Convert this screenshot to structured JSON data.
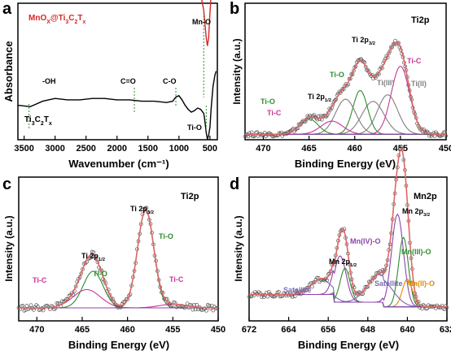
{
  "colors": {
    "mn_curve": "#d62728",
    "ti_curve": "#000000",
    "envelope": "#e06666",
    "green": "#2e8b2e",
    "gray": "#808080",
    "magenta": "#cc3399",
    "purple": "#8e44ad",
    "orange": "#e08a00",
    "lavender": "#7b68b5",
    "marker_red": "#b22222"
  },
  "chart_data": [
    {
      "type": "line",
      "panel_label": "a",
      "xlabel": "Wavenumber (cm⁻¹)",
      "ylabel": "Absorbance",
      "xlim": [
        3600,
        380
      ],
      "ylim": [
        0,
        1
      ],
      "xticks": [
        "3500",
        "3000",
        "2500",
        "2000",
        "1500",
        "1000",
        "500"
      ],
      "series": [
        {
          "name": "MnOX@Ti3C2Tx",
          "label_main": "MnO",
          "label_sub1": "X",
          "label_mid": "@Ti",
          "label_sub2": "3",
          "label_mid2": "C",
          "label_sub3": "2",
          "label_mid3": "T",
          "label_sub4": "x",
          "x": [
            3600,
            3400,
            3200,
            3000,
            2800,
            2600,
            2400,
            2200,
            2000,
            1800,
            1600,
            1400,
            1200,
            1100,
            1000,
            900,
            800,
            700,
            650,
            600,
            560,
            540,
            520,
            500,
            480,
            450,
            420,
            400
          ],
          "y": [
            0.8,
            0.79,
            0.81,
            0.8,
            0.79,
            0.81,
            0.8,
            0.8,
            0.81,
            0.8,
            0.81,
            0.8,
            0.79,
            0.8,
            0.79,
            0.79,
            0.78,
            0.77,
            0.74,
            0.62,
            0.42,
            0.36,
            0.42,
            0.6,
            0.74,
            0.82,
            0.86,
            0.88
          ]
        },
        {
          "name": "Ti3C2Tx",
          "label_main": "Ti",
          "label_sub1": "3",
          "label_mid": "C",
          "label_sub2": "2",
          "label_mid2": "T",
          "label_sub3": "x",
          "x": [
            3600,
            3400,
            3200,
            3000,
            2800,
            2600,
            2400,
            2200,
            2000,
            1800,
            1600,
            1400,
            1200,
            1100,
            1050,
            1000,
            950,
            900,
            850,
            800,
            750,
            700,
            650,
            600,
            580,
            560,
            540,
            520,
            500,
            480,
            450,
            420,
            400
          ],
          "y": [
            0.3,
            0.29,
            0.33,
            0.35,
            0.34,
            0.34,
            0.35,
            0.35,
            0.34,
            0.34,
            0.33,
            0.33,
            0.32,
            0.33,
            0.36,
            0.37,
            0.34,
            0.3,
            0.27,
            0.25,
            0.26,
            0.28,
            0.27,
            0.24,
            0.18,
            0.1,
            0.05,
            0.08,
            0.14,
            0.28,
            0.44,
            0.52,
            0.55
          ]
        }
      ],
      "annotations": [
        {
          "text": "Mn-O",
          "x": 600
        },
        {
          "text": "-OH",
          "x": 3420
        },
        {
          "text": "C=O",
          "x": 1720
        },
        {
          "text": "C-O",
          "x": 1050
        },
        {
          "text": "Ti-O",
          "x": 560
        }
      ]
    },
    {
      "type": "line",
      "panel_label": "b",
      "title": "Ti2p",
      "xlabel": "Binding Energy (eV)",
      "ylabel": "Intensity (a.u.)",
      "xlim": [
        472,
        450
      ],
      "ylim": [
        0,
        1
      ],
      "xticks": [
        "470",
        "465",
        "460",
        "455",
        "450"
      ],
      "peaks": [
        {
          "name": "Ti-C",
          "center": 455.0,
          "height": 0.62,
          "width": 1.0,
          "color": "magenta"
        },
        {
          "name": "Ti(II)",
          "center": 456.4,
          "height": 0.36,
          "width": 1.1,
          "color": "gray"
        },
        {
          "name": "Ti(III)",
          "center": 458.0,
          "height": 0.3,
          "width": 1.2,
          "color": "gray"
        },
        {
          "name": "Ti-O",
          "center": 459.4,
          "height": 0.4,
          "width": 0.8,
          "color": "green"
        },
        {
          "name": "Ti(III)",
          "center": 461.0,
          "height": 0.32,
          "width": 1.1,
          "color": "gray"
        },
        {
          "name": "Ti-C",
          "center": 462.5,
          "height": 0.12,
          "width": 1.2,
          "color": "magenta"
        },
        {
          "name": "Ti-O",
          "center": 465.0,
          "height": 0.14,
          "width": 1.0,
          "color": "green"
        }
      ],
      "annotations": [
        {
          "text": "Ti-C",
          "color": "magenta"
        },
        {
          "text": "Ti(II)",
          "color": "gray"
        },
        {
          "text": "Ti(III)",
          "color": "gray"
        },
        {
          "text": "Ti-O",
          "color": "green"
        },
        {
          "text": "Ti 2p",
          "sub": "3/2"
        },
        {
          "text": "Ti 2p",
          "sub": "1/2"
        },
        {
          "text": "Ti-O",
          "color": "green"
        },
        {
          "text": "Ti-C",
          "color": "magenta"
        }
      ]
    },
    {
      "type": "line",
      "panel_label": "c",
      "title": "Ti2p",
      "xlabel": "Binding Energy (eV)",
      "ylabel": "Intensity (a.u.)",
      "xlim": [
        472,
        450
      ],
      "ylim": [
        0,
        1
      ],
      "xticks": [
        "470",
        "465",
        "460",
        "455",
        "450"
      ],
      "peaks": [
        {
          "name": "Ti-O",
          "center": 458.0,
          "height": 0.8,
          "width": 0.9,
          "color": "green"
        },
        {
          "name": "Ti-O",
          "center": 463.8,
          "height": 0.3,
          "width": 1.1,
          "color": "green"
        },
        {
          "name": "Ti-C",
          "center": 455.0,
          "height": 0.03,
          "width": 1.5,
          "color": "magenta"
        },
        {
          "name": "Ti-C",
          "center": 464.5,
          "height": 0.15,
          "width": 1.5,
          "color": "magenta"
        }
      ],
      "annotations": [
        {
          "text": "Ti 2p",
          "sub": "3/2"
        },
        {
          "text": "Ti-O",
          "color": "green"
        },
        {
          "text": "Ti 2p",
          "sub": "1/2"
        },
        {
          "text": "Ti-O",
          "color": "green"
        },
        {
          "text": "Ti-C",
          "color": "magenta"
        },
        {
          "text": "Ti-C",
          "color": "magenta"
        }
      ]
    },
    {
      "type": "line",
      "panel_label": "d",
      "title": "Mn2p",
      "xlabel": "Binding Energy (eV)",
      "ylabel": "Intensity (a.u.)",
      "xlim": [
        672,
        632
      ],
      "ylim": [
        0,
        1
      ],
      "xticks": [
        "672",
        "664",
        "656",
        "648",
        "640",
        "632"
      ],
      "peaks": [
        {
          "name": "Mn(IV)-O",
          "center": 642.0,
          "height": 0.6,
          "width": 1.2,
          "color": "purple"
        },
        {
          "name": "Mn(III)-O",
          "center": 640.8,
          "height": 0.45,
          "width": 1.0,
          "color": "green"
        },
        {
          "name": "Mn(II)-O",
          "center": 640.0,
          "height": 0.18,
          "width": 1.0,
          "color": "orange"
        },
        {
          "name": "Satellite",
          "center": 645.5,
          "height": 0.18,
          "width": 2.5,
          "color": "lavender"
        },
        {
          "name": "Mn(IV)-O",
          "center": 653.6,
          "height": 0.3,
          "width": 1.2,
          "color": "purple"
        },
        {
          "name": "Mn(III)-O",
          "center": 652.6,
          "height": 0.22,
          "width": 1.0,
          "color": "green"
        },
        {
          "name": "Satellite",
          "center": 657.5,
          "height": 0.1,
          "width": 2.0,
          "color": "lavender"
        }
      ],
      "annotations": [
        {
          "text": "Mn 2p",
          "sub": "3/2"
        },
        {
          "text": "Mn(IV)-O",
          "color": "purple"
        },
        {
          "text": "Mn(III)-O",
          "color": "green"
        },
        {
          "text": "Mn(II)-O",
          "color": "orange"
        },
        {
          "text": "Satellite",
          "color": "lavender"
        },
        {
          "text": "Mn 2p",
          "sub": "1/2"
        },
        {
          "text": "Satellite",
          "color": "lavender"
        }
      ]
    }
  ]
}
